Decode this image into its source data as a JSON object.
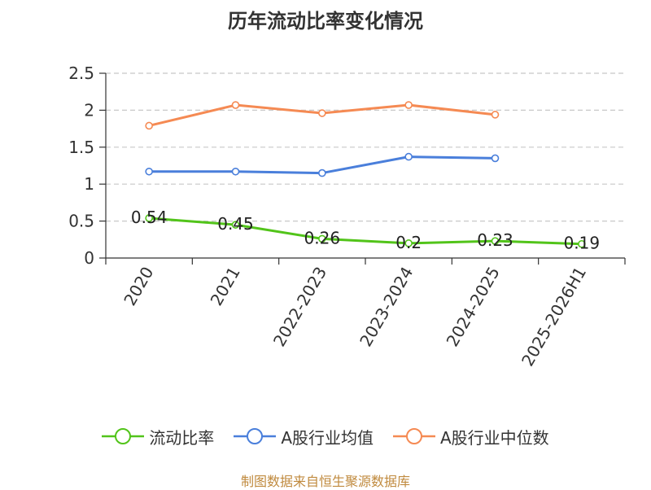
{
  "chart_data": {
    "type": "line",
    "title": "历年流动比率变化情况",
    "categories": [
      "2020",
      "2021",
      "2022-2023",
      "2023-2024",
      "2024-2025",
      "2025-2026H1"
    ],
    "ylim": [
      0,
      2.5
    ],
    "yticks": [
      0,
      0.5,
      1,
      1.5,
      2,
      2.5
    ],
    "ytick_labels": [
      "0",
      "0.5",
      "1",
      "1.5",
      "2",
      "2.5"
    ],
    "grid": true,
    "legend_position": "bottom",
    "series": [
      {
        "name": "流动比率",
        "color": "#52c41a",
        "values": [
          0.54,
          0.45,
          0.26,
          0.2,
          0.23,
          0.19
        ],
        "labels": [
          "0.54",
          "0.45",
          "0.26",
          "0.2",
          "0.23",
          "0.19"
        ]
      },
      {
        "name": "A股行业均值",
        "color": "#4a7fdb",
        "values": [
          1.17,
          1.17,
          1.15,
          1.37,
          1.35,
          null
        ]
      },
      {
        "name": "A股行业中位数",
        "color": "#f58a53",
        "values": [
          1.79,
          2.07,
          1.96,
          2.07,
          1.94,
          null
        ]
      }
    ]
  },
  "footer": "制图数据来自恒生聚源数据库"
}
